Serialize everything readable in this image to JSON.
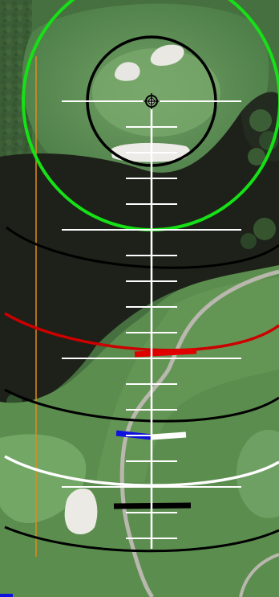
{
  "map": {
    "view": "satellite",
    "subject": "golf-hole-overhead",
    "overlay": {
      "target_marker": "crosshair",
      "aim_line": "vertical-center",
      "colors": {
        "green_circle": "#16e016",
        "inner_circle": "#000000",
        "distance_arc_red": "#cc0000",
        "distance_arc_white": "#ffffff",
        "distance_arc_black": "#000000",
        "landing_marker_red": "#e00000",
        "landing_marker_blue": "#1010e0",
        "reference_line_orange": "#e08a1e",
        "ruler": "#ffffff"
      }
    }
  }
}
